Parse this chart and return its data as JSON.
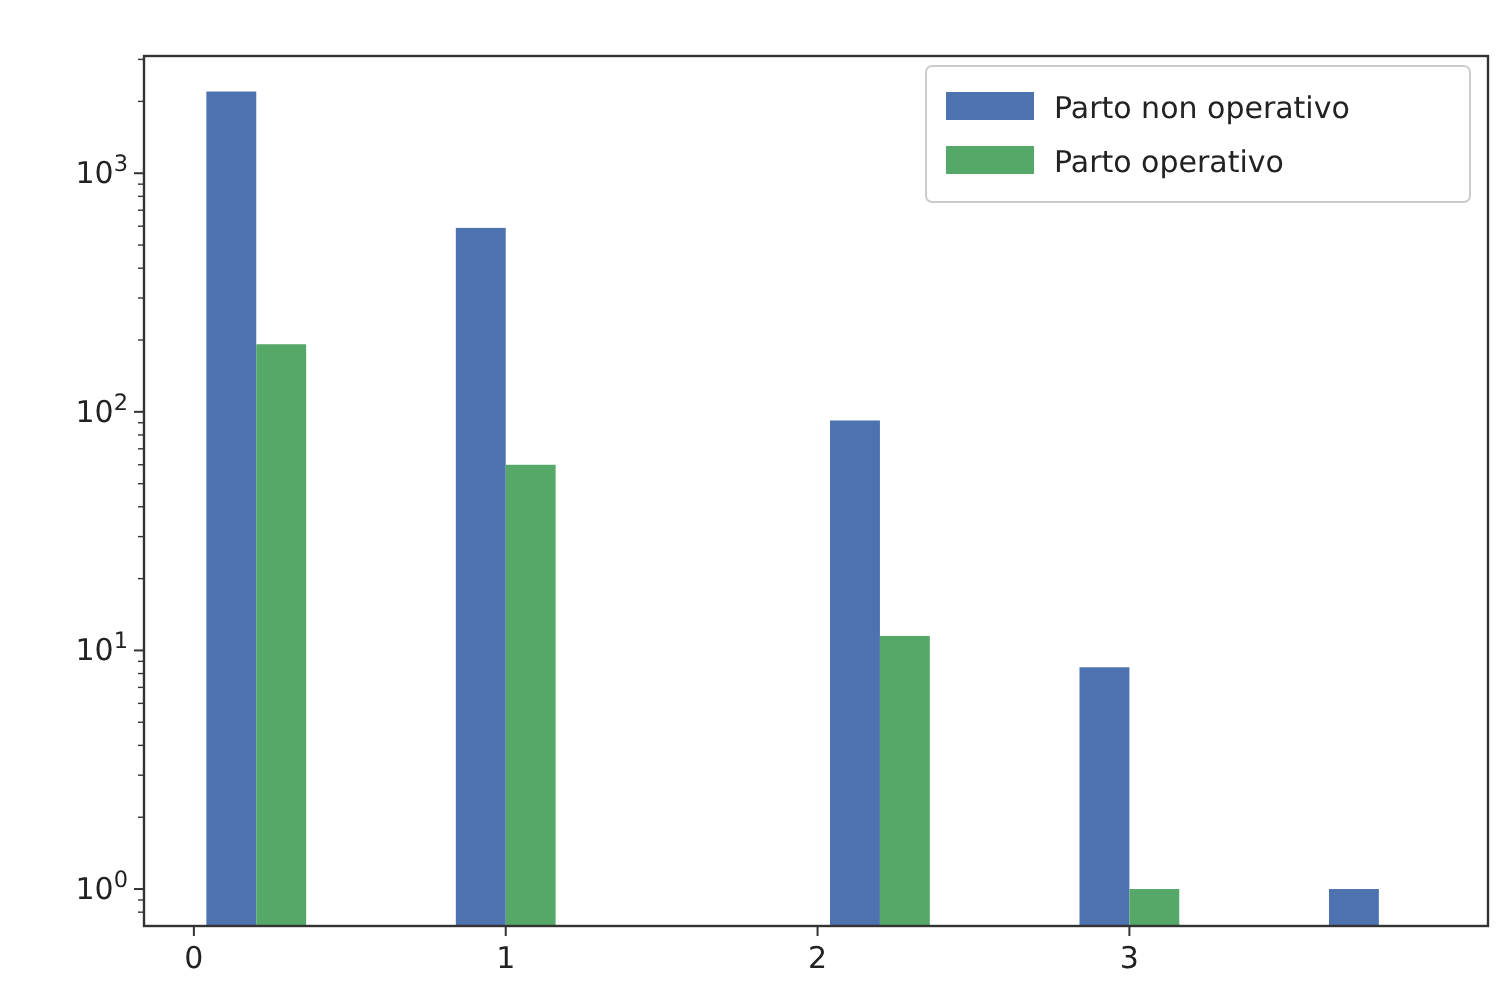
{
  "chart_data": {
    "type": "histogram",
    "log": true,
    "grid": false,
    "legend": "top right",
    "bins": [
      0,
      0.4,
      0.8,
      1.2,
      1.6,
      2.0,
      2.4,
      2.8,
      3.2,
      3.6,
      4.0
    ],
    "series": [
      {
        "name": "Parto non operativo",
        "color": "#4c72b0",
        "values": [
          2200,
          null,
          590,
          null,
          null,
          92,
          null,
          8.5,
          null,
          1
        ]
      },
      {
        "name": "Parto operativo",
        "color": "#55a868",
        "values": [
          192,
          null,
          60,
          null,
          null,
          11.5,
          null,
          1,
          null,
          null
        ]
      }
    ],
    "xlim": [
      -0.16,
      4.15
    ],
    "xticks": [
      0,
      1,
      2,
      3
    ],
    "ylim": [
      0.7,
      3100
    ],
    "yticks": [
      {
        "value": 1,
        "label": "10$^{0}$"
      },
      {
        "value": 10,
        "label": "10$^{1}$"
      },
      {
        "value": 100,
        "label": "10$^{2}$"
      },
      {
        "value": 1000,
        "label": "10$^{3}$"
      },
      {
        "value": 0.8,
        "label": null
      },
      {
        "value": 0.9,
        "label": null
      },
      {
        "value": 2,
        "label": null
      },
      {
        "value": 3,
        "label": null
      },
      {
        "value": 4,
        "label": null
      },
      {
        "value": 5,
        "label": null
      },
      {
        "value": 6,
        "label": null
      },
      {
        "value": 7,
        "label": null
      },
      {
        "value": 8,
        "label": null
      },
      {
        "value": 9,
        "label": null
      },
      {
        "value": 20,
        "label": null
      },
      {
        "value": 30,
        "label": null
      },
      {
        "value": 40,
        "label": null
      },
      {
        "value": 50,
        "label": null
      },
      {
        "value": 60,
        "label": null
      },
      {
        "value": 70,
        "label": null
      },
      {
        "value": 80,
        "label": null
      },
      {
        "value": 90,
        "label": null
      },
      {
        "value": 200,
        "label": null
      },
      {
        "value": 300,
        "label": null
      },
      {
        "value": 400,
        "label": null
      },
      {
        "value": 500,
        "label": null
      },
      {
        "value": 600,
        "label": null
      },
      {
        "value": 700,
        "label": null
      },
      {
        "value": 800,
        "label": null
      },
      {
        "value": 900,
        "label": null
      },
      {
        "value": 2000,
        "label": null
      },
      {
        "value": 3000,
        "label": null
      }
    ]
  }
}
